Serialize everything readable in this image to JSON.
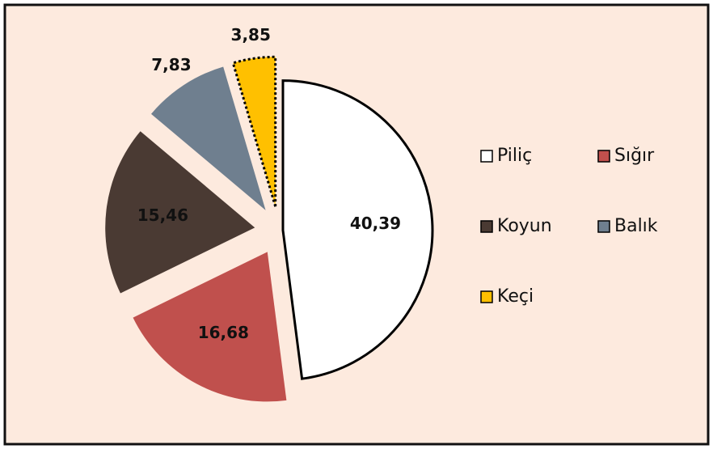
{
  "chart_data": {
    "type": "pie",
    "categories": [
      "Piliç",
      "Sığır",
      "Koyun",
      "Balık",
      "Keçi"
    ],
    "values": [
      40.39,
      16.68,
      15.46,
      7.83,
      3.85
    ],
    "value_labels": [
      "40,39",
      "16,68",
      "15,46",
      "7,83",
      "3,85"
    ],
    "colors": [
      "#ffffff",
      "#c0504d",
      "#4a3a33",
      "#6f7f8f",
      "#ffc000"
    ],
    "legend": "right"
  }
}
